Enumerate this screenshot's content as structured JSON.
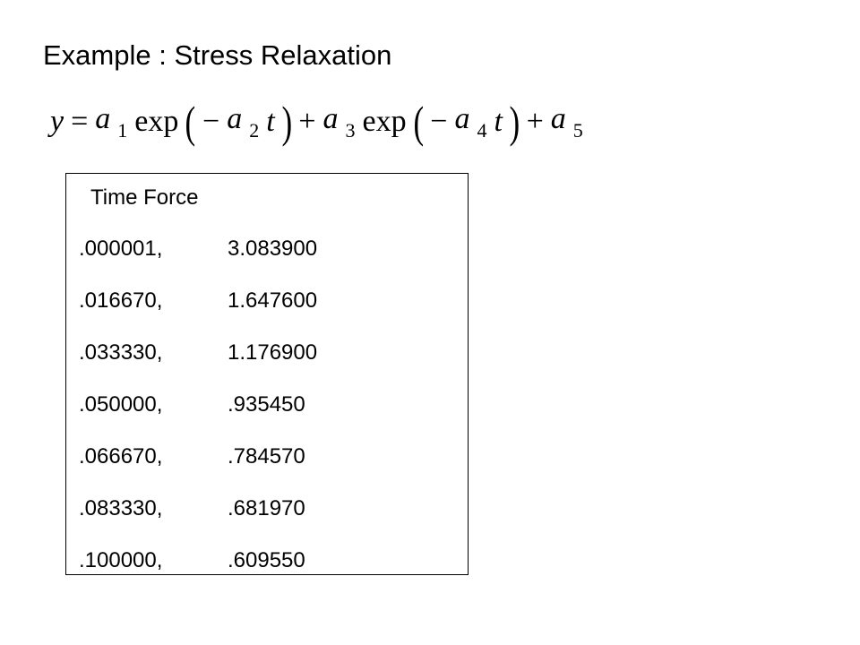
{
  "title": "Example : Stress Relaxation",
  "equation": [
    {
      "text": "y",
      "italic": true
    },
    {
      "text": "="
    },
    {
      "text": "a",
      "sub": "1",
      "italic": true
    },
    {
      "text": "exp"
    },
    {
      "text": "(",
      "paren": true
    },
    {
      "text": "−"
    },
    {
      "text": "a",
      "sub": "2",
      "italic": true
    },
    {
      "text": "t",
      "italic": true
    },
    {
      "text": ")",
      "paren": true
    },
    {
      "text": "+"
    },
    {
      "text": "a",
      "sub": "3",
      "italic": true
    },
    {
      "text": "exp"
    },
    {
      "text": "(",
      "paren": true
    },
    {
      "text": "−"
    },
    {
      "text": "a",
      "sub": "4",
      "italic": true
    },
    {
      "text": "t",
      "italic": true
    },
    {
      "text": ")",
      "paren": true
    },
    {
      "text": "+"
    },
    {
      "text": "a",
      "sub": "5",
      "italic": true
    }
  ],
  "table": {
    "header": "Time Force",
    "rows": [
      [
        ".000001,",
        "3.083900"
      ],
      [
        ".016670,",
        "1.647600"
      ],
      [
        ".033330,",
        "1.176900"
      ],
      [
        ".050000,",
        ".935450"
      ],
      [
        ".066670,",
        ".784570"
      ],
      [
        ".083330,",
        ".681970"
      ],
      [
        ".100000,",
        ".609550"
      ]
    ]
  }
}
